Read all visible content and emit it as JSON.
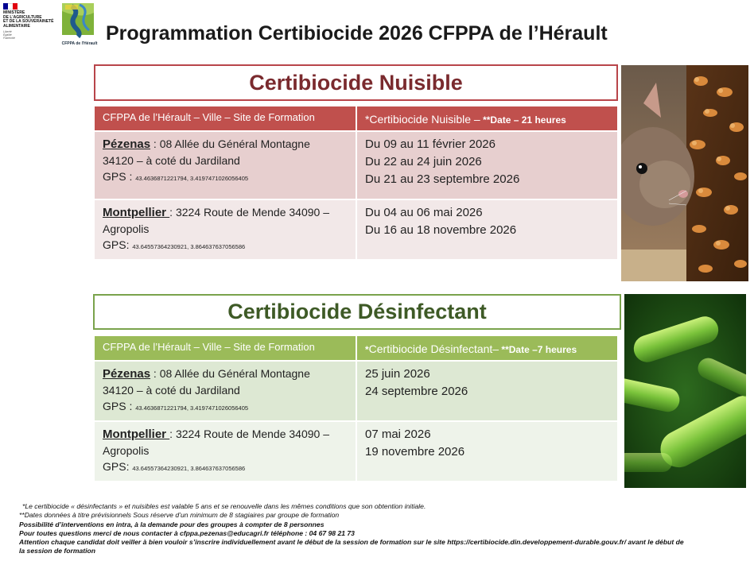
{
  "header": {
    "ministry_lines": [
      "MINISTÈRE",
      "DE L'AGRICULTURE",
      "ET DE LA SOUVERAINETÉ",
      "ALIMENTAIRE"
    ],
    "ministry_motto": [
      "Liberté",
      "Égalité",
      "Fraternité"
    ],
    "cfppa_logo_label": "CFPPA de l'Hérault",
    "title": "Programmation Certibiocide 2026 CFPPA de l’Hérault"
  },
  "colors": {
    "nuisible_header": "#c0504d",
    "nuisible_row1": "#e7cfcf",
    "nuisible_row2": "#f2e8e8",
    "desinf_header": "#9bbb59",
    "desinf_row1": "#dde8d3",
    "desinf_row2": "#eef3ea"
  },
  "nuisible": {
    "banner": "Certibiocide Nuisible",
    "header_site": "CFPPA  de l’Hérault – Ville – Site de Formation",
    "header_course_main": "*Certibiocide Nuisible –",
    "header_course_note": " **Date – 21 heures",
    "rows": [
      {
        "city": "Pézenas",
        "address_line1": " : 08 Allée du Général Montagne",
        "address_line2": "34120 – à coté du Jardiland",
        "gps_label": "GPS : ",
        "gps_coords": "43.4636871221794, 3.4197471026056405",
        "dates": [
          "Du 09 au 11 février 2026",
          "Du 22 au 24 juin 2026",
          "Du 21 au 23 septembre 2026"
        ]
      },
      {
        "city": "Montpellier ",
        "address_line1": ": 3224 Route de Mende 34090 –",
        "address_line2": "Agropolis",
        "gps_label": "GPS: ",
        "gps_coords": "43.64557364230921, 3.864637637056586",
        "dates": [
          "Du 04 au 06 mai 2026",
          "Du 16 au 18 novembre 2026"
        ]
      }
    ]
  },
  "desinfectant": {
    "banner": "Certibiocide Désinfectant",
    "header_site": "CFPPA  de l’Hérault – Ville – Site de Formation",
    "header_course_star": "*",
    "header_course_main": "Certibiocide Désinfectant–",
    "header_course_note": " **Date –7 heures",
    "rows": [
      {
        "city": "Pézenas",
        "address_line1": " : 08 Allée du Général Montagne",
        "address_line2": "34120 – à coté du Jardiland",
        "gps_label": "GPS : ",
        "gps_coords": "43.4636871221794, 3.4197471026056405",
        "dates": [
          "25 juin 2026",
          "24 septembre 2026"
        ]
      },
      {
        "city": "Montpellier ",
        "address_line1": ": 3224 Route de Mende 34090 –",
        "address_line2": "Agropolis",
        "gps_label": "GPS: ",
        "gps_coords": "43.64557364230921, 3.864637637056586",
        "dates": [
          "07 mai 2026",
          "19 novembre 2026"
        ]
      }
    ]
  },
  "notes": {
    "line1": "*Le certibiocide « désinfectants » et nuisibles est valable 5 ans et se renouvelle dans les mêmes conditions que son obtention initiale.",
    "line2": "**Dates données à titre prévisionnels Sous réserve d’un minimum de 8 stagiaires par groupe de formation",
    "line3": "Possibilité d’interventions en intra, à la demande pour des groupes à compter de 8 personnes",
    "line4": "Pour toutes questions merci de nous contacter à cfppa.pezenas@educagri.fr  téléphone : 04 67 98 21 73",
    "line5": "Attention chaque candidat doit veiller à bien vouloir s’inscrire individuellement avant le début de la session de formation sur le site https://certibiocide.din.developpement-durable.gouv.fr/ avant le début de",
    "line6": "la session de formation"
  }
}
